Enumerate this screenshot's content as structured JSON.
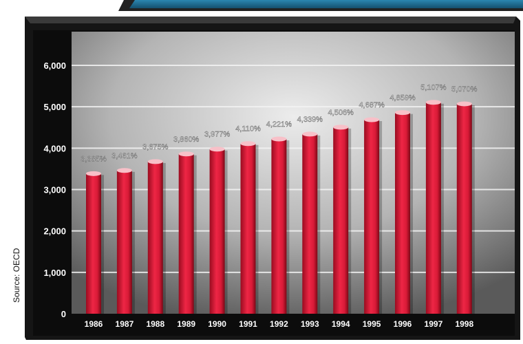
{
  "colors": {
    "bar": "#e8213f",
    "bar_dark": "#8f0a1c",
    "bar_cap": "#f8c0c8",
    "panel_light": "#e4e4e4",
    "panel_dark": "#5c5c5c",
    "frame": "#1a1a1a",
    "banner": "#1f6e95",
    "axis_text": "#ffffff",
    "value_text": "#f2f2f2"
  },
  "source": "Source: OECD",
  "chart_data": {
    "type": "bar",
    "categories": [
      "1986",
      "1987",
      "1988",
      "1989",
      "1990",
      "1991",
      "1992",
      "1993",
      "1994",
      "1995",
      "1996",
      "1997",
      "1998"
    ],
    "values": [
      3385,
      3461,
      3675,
      3860,
      3977,
      4110,
      4221,
      4339,
      4506,
      4687,
      4859,
      5107,
      5070
    ],
    "value_labels": [
      "3,385%",
      "3,461%",
      "3,675%",
      "3,860%",
      "3,977%",
      "4,110%",
      "4,221%",
      "4,339%",
      "4,506%",
      "4,687%",
      "4,859%",
      "5,107%",
      "5,070%"
    ],
    "ylim": [
      0,
      6000
    ],
    "yticks": [
      0,
      1000,
      2000,
      3000,
      4000,
      5000,
      6000
    ],
    "ytick_labels": [
      "0",
      "1,000",
      "2,000",
      "3,000",
      "4,000",
      "5,000",
      "6,000"
    ],
    "grid": true
  }
}
